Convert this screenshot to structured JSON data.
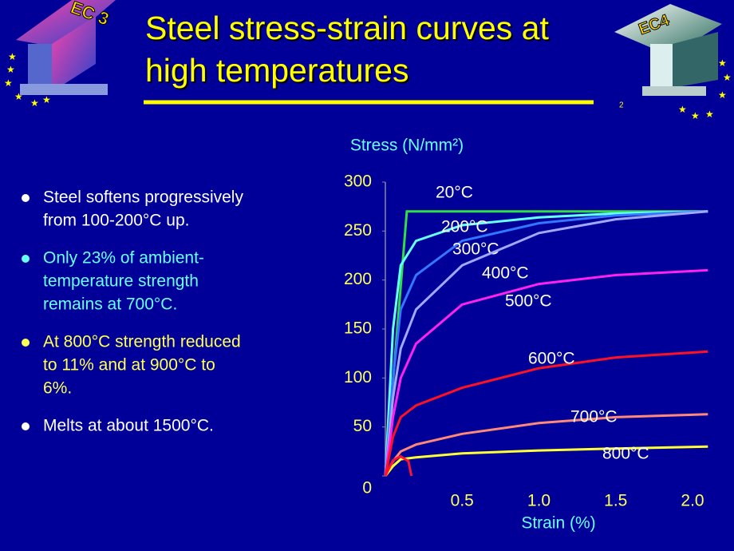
{
  "header": {
    "title_lines": [
      "Steel stress-strain curves at",
      "high temperatures"
    ],
    "page_number": "2",
    "logo_left": "EC 3",
    "logo_right": "EC4"
  },
  "bullets": [
    [
      "Steel softens progressively",
      "from 100-200°C up."
    ],
    [
      "Only 23% of ambient-",
      "temperature strength",
      "remains at 700°C."
    ],
    [
      "At 800°C strength reduced",
      "to 11% and at 900°C to",
      "6%."
    ],
    [
      "Melts at about 1500°C."
    ]
  ],
  "chart_data": {
    "type": "line",
    "y_label": "Stress (N/mm²)",
    "x_label": "Strain (%)",
    "xlim": [
      0,
      2.1
    ],
    "ylim": [
      0,
      300
    ],
    "xticks": [
      0.5,
      {
        "value": 1,
        "label": "1.0"
      },
      1.5,
      {
        "value": 2,
        "label": "2.0"
      }
    ],
    "yticks": [
      0,
      50,
      100,
      150,
      200,
      250,
      300
    ],
    "series": [
      {
        "name": "20°C",
        "color": "#33dd44",
        "x": [
          0,
          0.14,
          2.1
        ],
        "values": [
          0,
          270,
          270
        ]
      },
      {
        "name": "200°C",
        "color": "#66ffff",
        "x": [
          0,
          0.05,
          0.1,
          0.2,
          0.5,
          1,
          1.5,
          2.1
        ],
        "values": [
          0,
          150,
          215,
          240,
          256,
          264,
          268,
          270
        ]
      },
      {
        "name": "300°C",
        "color": "#3377ff",
        "x": [
          0,
          0.05,
          0.1,
          0.2,
          0.5,
          1,
          1.5,
          2.1
        ],
        "values": [
          0,
          100,
          170,
          205,
          240,
          258,
          266,
          270
        ]
      },
      {
        "name": "400°C",
        "color": "#a0a8ff",
        "x": [
          0,
          0.05,
          0.1,
          0.2,
          0.5,
          1,
          1.5,
          2.1
        ],
        "values": [
          0,
          80,
          130,
          170,
          215,
          248,
          262,
          270
        ]
      },
      {
        "name": "500°C",
        "color": "#ff22ee",
        "x": [
          0,
          0.05,
          0.1,
          0.2,
          0.5,
          1,
          1.5,
          2.1
        ],
        "values": [
          0,
          60,
          100,
          135,
          175,
          196,
          205,
          210
        ]
      },
      {
        "name": "600°C",
        "color": "#ff1122",
        "x": [
          0,
          0.05,
          0.1,
          0.2,
          0.5,
          1,
          1.5,
          2.1
        ],
        "values": [
          0,
          40,
          60,
          72,
          90,
          110,
          121,
          127
        ]
      },
      {
        "name": "700°C",
        "color": "#ff8877",
        "x": [
          0,
          0.05,
          0.1,
          0.2,
          0.5,
          1,
          1.5,
          2.1
        ],
        "values": [
          0,
          15,
          25,
          32,
          43,
          54,
          60,
          63
        ]
      },
      {
        "name": "800°C",
        "color": "#ffff33",
        "x": [
          0,
          0.05,
          0.1,
          0.2,
          0.5,
          1,
          1.5,
          2.1
        ],
        "values": [
          0,
          10,
          17,
          19,
          23,
          26,
          28,
          30
        ]
      },
      {
        "color": "#ff1133",
        "x": [
          0,
          0.05,
          0.1,
          0.15,
          0.17
        ],
        "values": [
          0,
          16,
          20,
          15,
          0
        ]
      }
    ]
  }
}
